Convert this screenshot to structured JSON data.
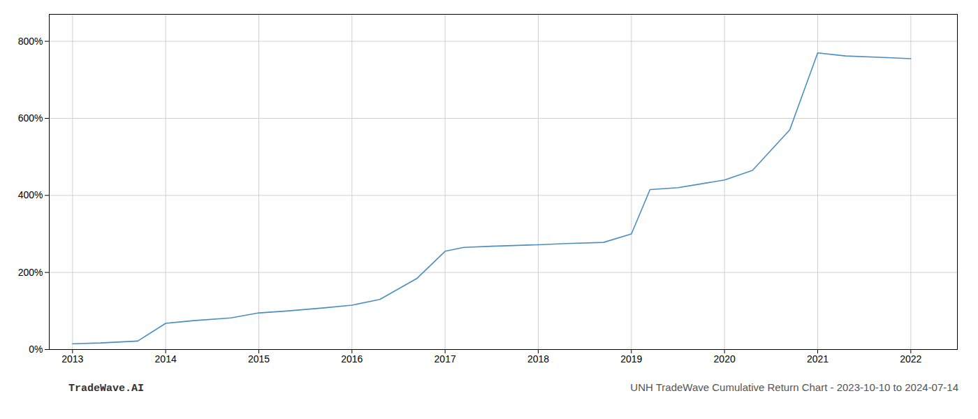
{
  "chart_data": {
    "type": "line",
    "title": "UNH TradeWave Cumulative Return Chart - 2023-10-10 to 2024-07-14",
    "annotations": [
      "TradeWave.AI"
    ],
    "color": "#4a8fc0",
    "x": [
      2013.0,
      2013.3,
      2013.7,
      2014.0,
      2014.3,
      2014.7,
      2015.0,
      2015.3,
      2015.7,
      2016.0,
      2016.3,
      2016.7,
      2017.0,
      2017.2,
      2017.5,
      2018.0,
      2018.3,
      2018.7,
      2019.0,
      2019.2,
      2019.5,
      2019.7,
      2020.0,
      2020.3,
      2020.7,
      2021.0,
      2021.3,
      2021.7,
      2022.0
    ],
    "values": [
      15,
      17,
      22,
      68,
      75,
      82,
      95,
      100,
      108,
      115,
      130,
      185,
      255,
      265,
      268,
      272,
      275,
      278,
      300,
      415,
      420,
      428,
      440,
      465,
      570,
      770,
      762,
      758,
      755
    ],
    "xlim": [
      2012.75,
      2022.5
    ],
    "xticks": [
      2013,
      2014,
      2015,
      2016,
      2017,
      2018,
      2019,
      2020,
      2021,
      2022
    ],
    "ylim": [
      0,
      870
    ],
    "yticks": [
      {
        "value": 0,
        "label": "0%"
      },
      {
        "value": 200,
        "label": "200%"
      },
      {
        "value": 400,
        "label": "400%"
      },
      {
        "value": 600,
        "label": "600%"
      },
      {
        "value": 800,
        "label": "800%"
      }
    ],
    "grid": true
  }
}
